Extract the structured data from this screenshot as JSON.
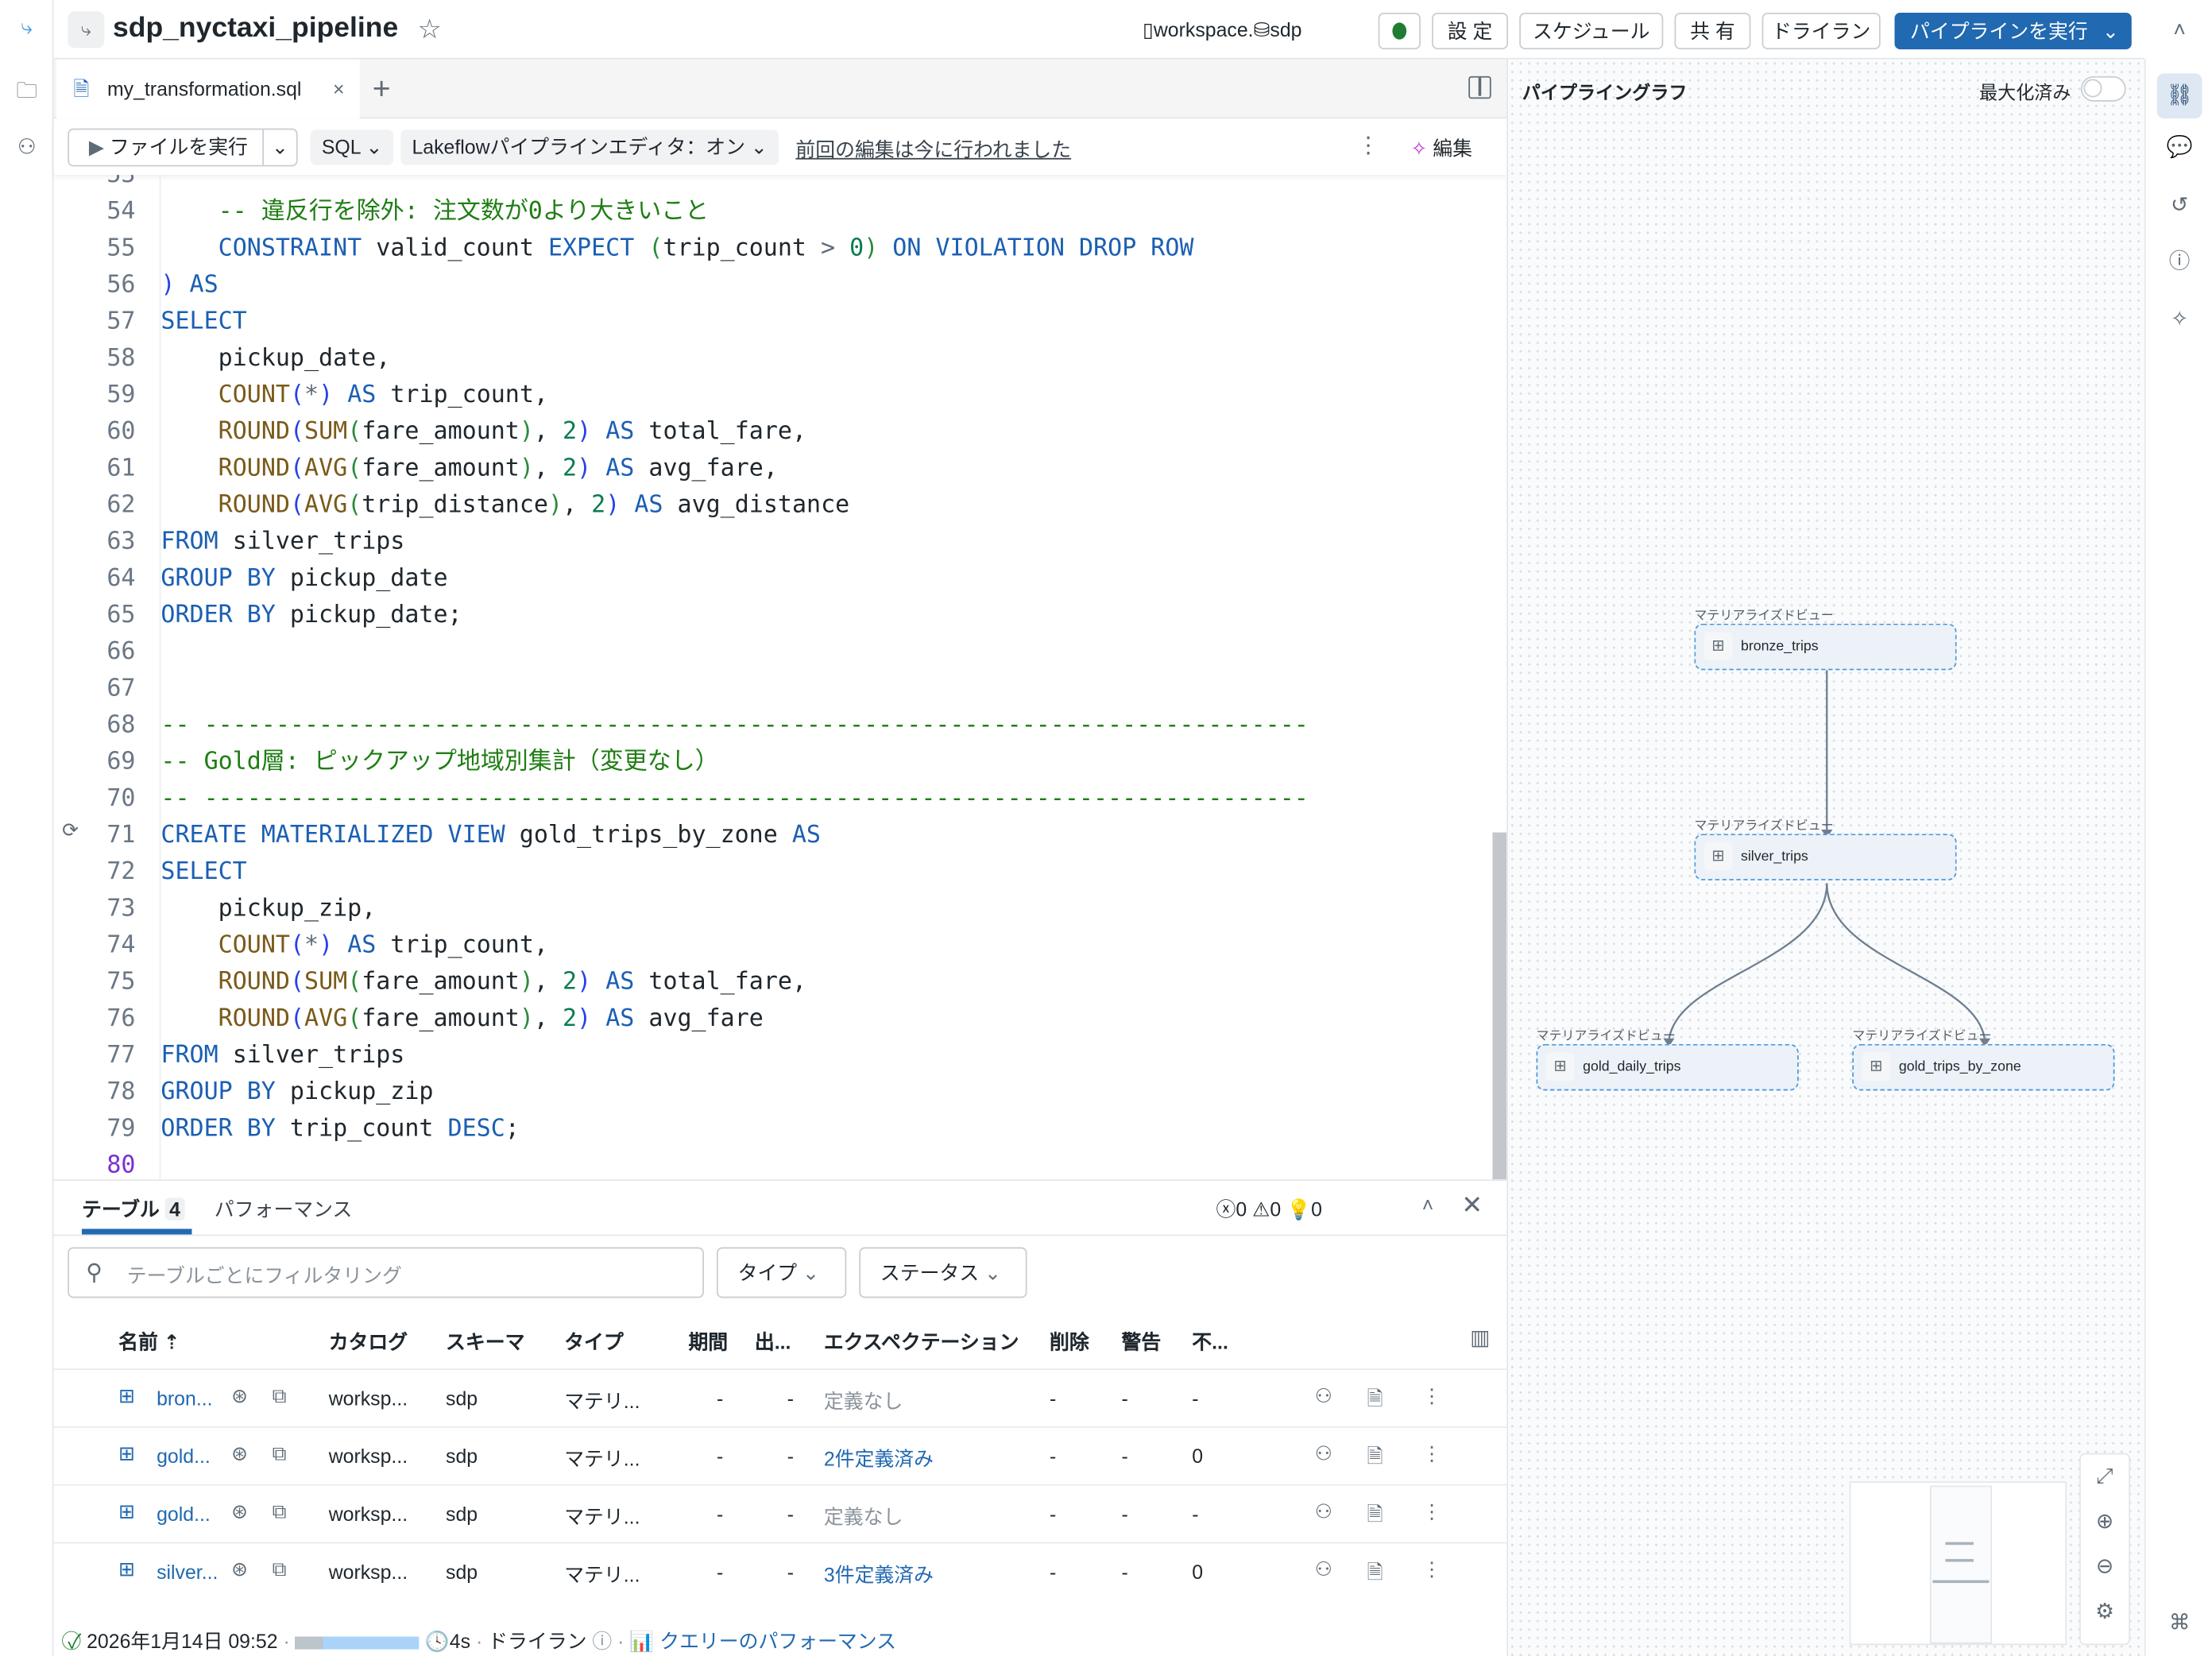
{
  "header": {
    "title": "sdp_nyctaxi_pipeline",
    "catalog": "workspace",
    "schema": "sdp",
    "separator": ".",
    "status_color": "#1e7d32",
    "buttons": {
      "settings": "設 定",
      "schedule": "スケジュール",
      "share": "共 有",
      "dry_run": "ドライラン",
      "run": "パイプラインを実行"
    }
  },
  "tabs": {
    "active": "my_transformation.sql"
  },
  "toolbar": {
    "run_file": "ファイルを実行",
    "language": "SQL",
    "editor_toggle": "Lakeflowパイプラインエディタ：オン",
    "last_edit": "前回の編集は今に行われました",
    "edit": "編集"
  },
  "editor": {
    "current_line": 80,
    "lines": [
      {
        "n": 53,
        "t": []
      },
      {
        "n": 54,
        "t": [
          [
            "c",
            "    -- 違反行を除外: 注文数が0より大きいこと"
          ]
        ]
      },
      {
        "n": 55,
        "t": [
          [
            "t",
            "    "
          ],
          [
            "k",
            "CONSTRAINT"
          ],
          [
            "t",
            " valid_count "
          ],
          [
            "k",
            "EXPECT"
          ],
          [
            "t",
            " "
          ],
          [
            "p2",
            "("
          ],
          [
            "t",
            "trip_count "
          ],
          [
            "o",
            ">"
          ],
          [
            "t",
            " "
          ],
          [
            "n",
            "0"
          ],
          [
            "p2",
            ")"
          ],
          [
            "t",
            " "
          ],
          [
            "k",
            "ON VIOLATION DROP ROW"
          ]
        ]
      },
      {
        "n": 56,
        "t": [
          [
            "p1",
            ")"
          ],
          [
            "t",
            " "
          ],
          [
            "k",
            "AS"
          ]
        ]
      },
      {
        "n": 57,
        "t": [
          [
            "k",
            "SELECT"
          ]
        ]
      },
      {
        "n": 58,
        "t": [
          [
            "t",
            "    pickup_date,"
          ]
        ]
      },
      {
        "n": 59,
        "t": [
          [
            "t",
            "    "
          ],
          [
            "f",
            "COUNT"
          ],
          [
            "p1",
            "("
          ],
          [
            "o",
            "*"
          ],
          [
            "p1",
            ")"
          ],
          [
            "t",
            " "
          ],
          [
            "k",
            "AS"
          ],
          [
            "t",
            " trip_count,"
          ]
        ]
      },
      {
        "n": 60,
        "t": [
          [
            "t",
            "    "
          ],
          [
            "f",
            "ROUND"
          ],
          [
            "p1",
            "("
          ],
          [
            "f",
            "SUM"
          ],
          [
            "p2",
            "("
          ],
          [
            "t",
            "fare_amount"
          ],
          [
            "p2",
            ")"
          ],
          [
            "t",
            ", "
          ],
          [
            "n",
            "2"
          ],
          [
            "p1",
            ")"
          ],
          [
            "t",
            " "
          ],
          [
            "k",
            "AS"
          ],
          [
            "t",
            " total_fare,"
          ]
        ]
      },
      {
        "n": 61,
        "t": [
          [
            "t",
            "    "
          ],
          [
            "f",
            "ROUND"
          ],
          [
            "p1",
            "("
          ],
          [
            "f",
            "AVG"
          ],
          [
            "p2",
            "("
          ],
          [
            "t",
            "fare_amount"
          ],
          [
            "p2",
            ")"
          ],
          [
            "t",
            ", "
          ],
          [
            "n",
            "2"
          ],
          [
            "p1",
            ")"
          ],
          [
            "t",
            " "
          ],
          [
            "k",
            "AS"
          ],
          [
            "t",
            " avg_fare,"
          ]
        ]
      },
      {
        "n": 62,
        "t": [
          [
            "t",
            "    "
          ],
          [
            "f",
            "ROUND"
          ],
          [
            "p1",
            "("
          ],
          [
            "f",
            "AVG"
          ],
          [
            "p2",
            "("
          ],
          [
            "t",
            "trip_distance"
          ],
          [
            "p2",
            ")"
          ],
          [
            "t",
            ", "
          ],
          [
            "n",
            "2"
          ],
          [
            "p1",
            ")"
          ],
          [
            "t",
            " "
          ],
          [
            "k",
            "AS"
          ],
          [
            "t",
            " avg_distance"
          ]
        ]
      },
      {
        "n": 63,
        "t": [
          [
            "k",
            "FROM"
          ],
          [
            "t",
            " silver_trips"
          ]
        ]
      },
      {
        "n": 64,
        "t": [
          [
            "k",
            "GROUP BY"
          ],
          [
            "t",
            " pickup_date"
          ]
        ]
      },
      {
        "n": 65,
        "t": [
          [
            "k",
            "ORDER BY"
          ],
          [
            "t",
            " pickup_date;"
          ]
        ]
      },
      {
        "n": 66,
        "t": []
      },
      {
        "n": 67,
        "t": []
      },
      {
        "n": 68,
        "t": [
          [
            "c",
            "-- -----------------------------------------------------------------------------"
          ]
        ]
      },
      {
        "n": 69,
        "t": [
          [
            "c",
            "-- Gold層: ピックアップ地域別集計（変更なし）"
          ]
        ]
      },
      {
        "n": 70,
        "t": [
          [
            "c",
            "-- -----------------------------------------------------------------------------"
          ]
        ]
      },
      {
        "n": 71,
        "t": [
          [
            "k",
            "CREATE MATERIALIZED VIEW"
          ],
          [
            "t",
            " gold_trips_by_zone "
          ],
          [
            "k",
            "AS"
          ]
        ]
      },
      {
        "n": 72,
        "t": [
          [
            "k",
            "SELECT"
          ]
        ]
      },
      {
        "n": 73,
        "t": [
          [
            "t",
            "    pickup_zip,"
          ]
        ]
      },
      {
        "n": 74,
        "t": [
          [
            "t",
            "    "
          ],
          [
            "f",
            "COUNT"
          ],
          [
            "p1",
            "("
          ],
          [
            "o",
            "*"
          ],
          [
            "p1",
            ")"
          ],
          [
            "t",
            " "
          ],
          [
            "k",
            "AS"
          ],
          [
            "t",
            " trip_count,"
          ]
        ]
      },
      {
        "n": 75,
        "t": [
          [
            "t",
            "    "
          ],
          [
            "f",
            "ROUND"
          ],
          [
            "p1",
            "("
          ],
          [
            "f",
            "SUM"
          ],
          [
            "p2",
            "("
          ],
          [
            "t",
            "fare_amount"
          ],
          [
            "p2",
            ")"
          ],
          [
            "t",
            ", "
          ],
          [
            "n",
            "2"
          ],
          [
            "p1",
            ")"
          ],
          [
            "t",
            " "
          ],
          [
            "k",
            "AS"
          ],
          [
            "t",
            " total_fare,"
          ]
        ]
      },
      {
        "n": 76,
        "t": [
          [
            "t",
            "    "
          ],
          [
            "f",
            "ROUND"
          ],
          [
            "p1",
            "("
          ],
          [
            "f",
            "AVG"
          ],
          [
            "p2",
            "("
          ],
          [
            "t",
            "fare_amount"
          ],
          [
            "p2",
            ")"
          ],
          [
            "t",
            ", "
          ],
          [
            "n",
            "2"
          ],
          [
            "p1",
            ")"
          ],
          [
            "t",
            " "
          ],
          [
            "k",
            "AS"
          ],
          [
            "t",
            " avg_fare"
          ]
        ]
      },
      {
        "n": 77,
        "t": [
          [
            "k",
            "FROM"
          ],
          [
            "t",
            " silver_trips"
          ]
        ]
      },
      {
        "n": 78,
        "t": [
          [
            "k",
            "GROUP BY"
          ],
          [
            "t",
            " pickup_zip"
          ]
        ]
      },
      {
        "n": 79,
        "t": [
          [
            "k",
            "ORDER BY"
          ],
          [
            "t",
            " trip_count "
          ],
          [
            "k",
            "DESC"
          ],
          [
            "t",
            ";"
          ]
        ]
      },
      {
        "n": 80,
        "t": []
      }
    ]
  },
  "graph": {
    "title": "パイプライングラフ",
    "maximized_label": "最大化済み",
    "maximized": false,
    "nodes": [
      {
        "type": "マテリアライズドビュー",
        "name": "bronze_trips"
      },
      {
        "type": "マテリアライズドビュー",
        "name": "silver_trips"
      },
      {
        "type": "マテリアライズドビュー",
        "name": "gold_daily_trips"
      },
      {
        "type": "マテリアライズドビュー",
        "name": "gold_trips_by_zone"
      }
    ],
    "edges": [
      [
        "bronze_trips",
        "silver_trips"
      ],
      [
        "silver_trips",
        "gold_daily_trips"
      ],
      [
        "silver_trips",
        "gold_trips_by_zone"
      ]
    ]
  },
  "bottom": {
    "tabs": [
      {
        "label": "テーブル",
        "count": "4"
      },
      {
        "label": "パフォーマンス"
      }
    ],
    "errors": "0",
    "warnings": "0",
    "suggestions": "0",
    "filter_placeholder": "テーブルごとにフィルタリング",
    "type_filter": "タイプ",
    "status_filter": "ステータス",
    "columns": [
      "名前",
      "カタログ",
      "スキーマ",
      "タイプ",
      "期間",
      "出...",
      "エクスペクテーション",
      "削除",
      "警告",
      "不..."
    ],
    "rows": [
      {
        "name": "bron...",
        "catalog": "worksp...",
        "schema": "sdp",
        "type": "マテリ...",
        "duration": "-",
        "output": "-",
        "expect": "定義なし",
        "expect_link": false,
        "deleted": "-",
        "warn": "-",
        "invalid": "-"
      },
      {
        "name": "gold...",
        "catalog": "worksp...",
        "schema": "sdp",
        "type": "マテリ...",
        "duration": "-",
        "output": "-",
        "expect": "2件定義済み",
        "expect_link": true,
        "deleted": "-",
        "warn": "-",
        "invalid": "0"
      },
      {
        "name": "gold...",
        "catalog": "worksp...",
        "schema": "sdp",
        "type": "マテリ...",
        "duration": "-",
        "output": "-",
        "expect": "定義なし",
        "expect_link": false,
        "deleted": "-",
        "warn": "-",
        "invalid": "-"
      },
      {
        "name": "silver...",
        "catalog": "worksp...",
        "schema": "sdp",
        "type": "マテリ...",
        "duration": "-",
        "output": "-",
        "expect": "3件定義済み",
        "expect_link": true,
        "deleted": "-",
        "warn": "-",
        "invalid": "0"
      }
    ]
  },
  "status": {
    "timestamp": "2026年1月14日 09:52",
    "duration": "4s",
    "mode": "ドライラン",
    "perf_link": "クエリーのパフォーマンス",
    "sep": "·"
  }
}
